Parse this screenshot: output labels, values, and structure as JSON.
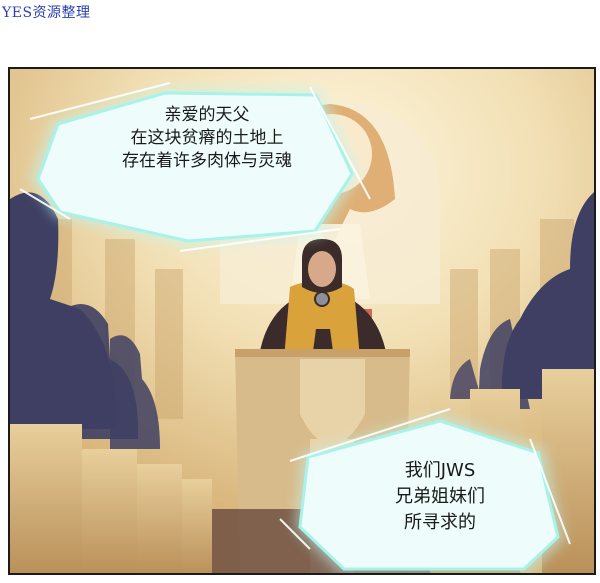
{
  "watermark": "YES资源整理",
  "bubbles": [
    {
      "lines": [
        "亲爱的天父",
        "在这块贫瘠的土地上",
        "存在着许多肉体与灵魂"
      ]
    },
    {
      "lines": [
        "我们JWS",
        "兄弟姐妹们",
        "所寻求的"
      ]
    }
  ],
  "colors": {
    "glow": "#bff6f0",
    "wall": "#ecd9ad",
    "pew": "#d8b986",
    "robe": "#3b2b2a",
    "stole": "#d9a23a",
    "congregation": "#3e3f63"
  }
}
